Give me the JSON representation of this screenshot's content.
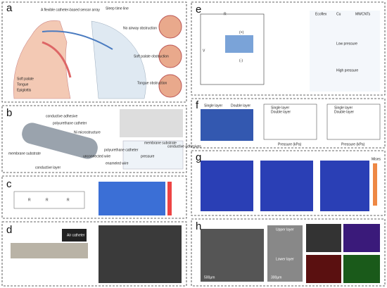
{
  "panels": [
    {
      "label": "a",
      "annotations": [
        "A flexible catheter-based sensor array",
        "Sleep time line",
        "No airway obstruction",
        "Soft palate obstruction",
        "Tongue obstruction",
        "Soft palate",
        "Tongue",
        "Epiglottis"
      ]
    },
    {
      "label": "b",
      "annotations": [
        "conductive adhesive",
        "polyurethane catheter",
        "Ni microstructure",
        "membrane substrate",
        "conductive layer",
        "unconnected wire",
        "membrane substrate",
        "polyurethane catheter",
        "conductive adhesives",
        "pressure",
        "enameled wire"
      ]
    },
    {
      "label": "c",
      "annotations": [
        "R",
        "R",
        "R"
      ]
    },
    {
      "label": "d",
      "annotations": [
        "Air catheter"
      ]
    },
    {
      "label": "e",
      "annotations": [
        "R",
        "V",
        "(+)",
        "(-)",
        "Ecoflex",
        "Cu",
        "MWCNTs",
        "Low pressure",
        "High pressure"
      ]
    },
    {
      "label": "f",
      "annotations": [
        "Single layer",
        "Double layer",
        "Single layer",
        "Double layer",
        "Pressure (kPa)",
        "Single layer",
        "Double layer",
        "Pressure (kPa)"
      ]
    },
    {
      "label": "g",
      "annotations": [
        "Mises"
      ]
    },
    {
      "label": "h",
      "annotations": [
        "500μm",
        "Upper layer",
        "Lower layer",
        "300μm"
      ]
    }
  ]
}
